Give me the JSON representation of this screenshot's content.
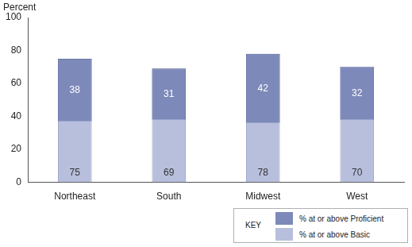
{
  "chart_data": {
    "type": "bar",
    "y_label": "Percent",
    "categories": [
      "Northeast",
      "South",
      "Midwest",
      "West"
    ],
    "series": [
      {
        "name": "% at or above Proficient",
        "color": "#7d89b9",
        "values": [
          38,
          31,
          42,
          32
        ]
      },
      {
        "name": "% at or above Basic",
        "color": "#b8bfdd",
        "values": [
          75,
          69,
          78,
          70
        ]
      }
    ],
    "ylim": [
      0,
      100
    ],
    "yticks": [
      0,
      20,
      40,
      60,
      80,
      100
    ],
    "grid": false,
    "data_labels": true,
    "legend": "bottom right",
    "legend_title": "KEY"
  }
}
